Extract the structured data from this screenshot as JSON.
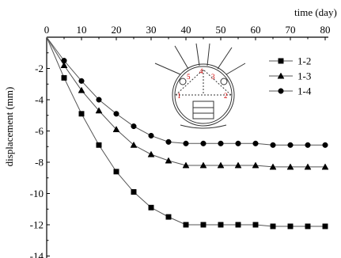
{
  "chart_data": {
    "type": "line",
    "xlabel": "time (day)",
    "ylabel": "displacement (mm)",
    "xlim": [
      0,
      82
    ],
    "ylim": [
      -14,
      0
    ],
    "xaxis_position": "top",
    "x_ticks": [
      0,
      10,
      20,
      30,
      40,
      50,
      60,
      70,
      80
    ],
    "y_ticks": [
      -2,
      -4,
      -6,
      -8,
      -10,
      -12,
      -14
    ],
    "y_tick_labels": [
      "-2",
      "-4",
      "-6",
      "-8",
      "-10",
      "-12",
      "-14"
    ],
    "x_tick_labels": [
      "0",
      "10",
      "20",
      "30",
      "40",
      "50",
      "60",
      "70",
      "80"
    ],
    "grid": false,
    "legend_position": "top-right",
    "series": [
      {
        "name": "1-2",
        "marker": "square",
        "x": [
          0,
          5,
          10,
          15,
          20,
          25,
          30,
          35,
          40,
          45,
          50,
          55,
          60,
          65,
          70,
          75,
          80
        ],
        "y": [
          0,
          -2.6,
          -4.9,
          -6.9,
          -8.6,
          -9.9,
          -10.9,
          -11.5,
          -12.0,
          -12.0,
          -12.0,
          -12.0,
          -12.0,
          -12.1,
          -12.1,
          -12.1,
          -12.1
        ]
      },
      {
        "name": "1-3",
        "marker": "triangle",
        "x": [
          0,
          5,
          10,
          15,
          20,
          25,
          30,
          35,
          40,
          45,
          50,
          55,
          60,
          65,
          70,
          75,
          80
        ],
        "y": [
          0,
          -1.8,
          -3.4,
          -4.7,
          -5.9,
          -6.9,
          -7.5,
          -7.9,
          -8.2,
          -8.2,
          -8.2,
          -8.2,
          -8.2,
          -8.3,
          -8.3,
          -8.3,
          -8.3
        ]
      },
      {
        "name": "1-4",
        "marker": "circle",
        "x": [
          0,
          5,
          10,
          15,
          20,
          25,
          30,
          35,
          40,
          45,
          50,
          55,
          60,
          65,
          70,
          75,
          80
        ],
        "y": [
          0,
          -1.5,
          -2.8,
          -4.0,
          -4.9,
          -5.7,
          -6.3,
          -6.7,
          -6.8,
          -6.8,
          -6.8,
          -6.8,
          -6.8,
          -6.9,
          -6.9,
          -6.9,
          -6.9
        ]
      }
    ],
    "inset": {
      "description_labels": [
        "1",
        "2",
        "3",
        "4",
        "5"
      ],
      "label_color": "#d00000"
    },
    "colors": {
      "axis": "#000000",
      "series_line": "#555555",
      "marker": "#000000"
    }
  }
}
